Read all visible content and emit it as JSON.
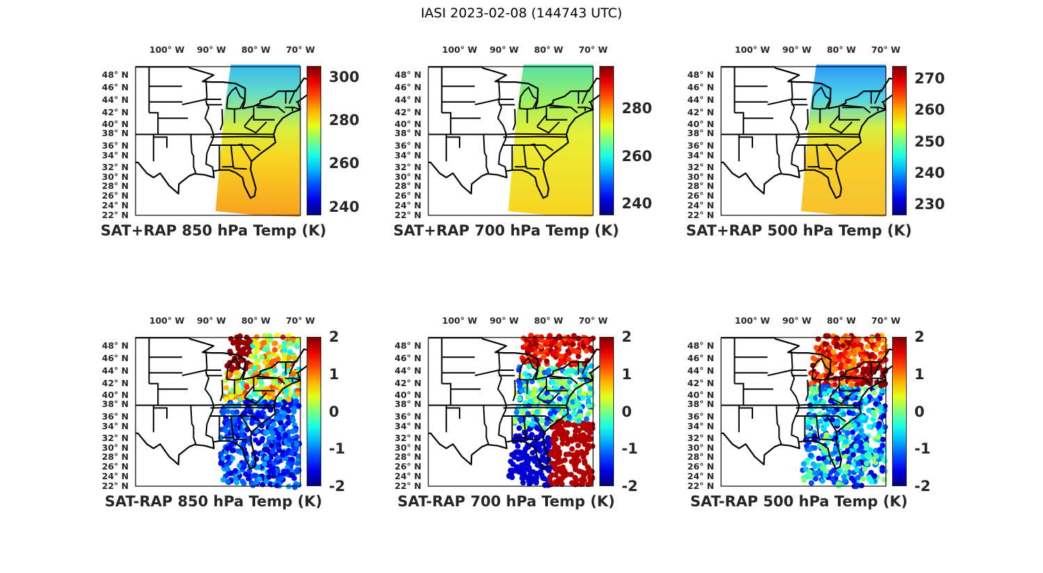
{
  "figure_title": "IASI 2023-02-08 (144743 UTC)",
  "colormap": "jet",
  "lon_labels": [
    "100° W",
    "90° W",
    "80° W",
    "70° W"
  ],
  "lat_labels": [
    "48° N",
    "46° N",
    "44° N",
    "42° N",
    "40° N",
    "38° N",
    "36° N",
    "34° N",
    "32° N",
    "30° N",
    "28° N",
    "26° N",
    "24° N",
    "22° N"
  ],
  "panels": [
    {
      "title": "SAT+RAP 850 hPa Temp (K)",
      "type": "field",
      "clim": [
        236,
        305
      ],
      "ticks": [
        "240",
        "260",
        "280",
        "300"
      ]
    },
    {
      "title": "SAT+RAP 700 hPa Temp (K)",
      "type": "field",
      "clim": [
        235,
        298
      ],
      "ticks": [
        "240",
        "260",
        "280"
      ]
    },
    {
      "title": "SAT+RAP 500 hPa Temp (K)",
      "type": "field",
      "clim": [
        226.5,
        274
      ],
      "ticks": [
        "230",
        "240",
        "250",
        "260",
        "270"
      ]
    },
    {
      "title": "SAT-RAP 850 hPa Temp (K)",
      "type": "difference",
      "clim": [
        -2,
        2
      ],
      "ticks": [
        "-2",
        "-1",
        "0",
        "1",
        "2"
      ]
    },
    {
      "title": "SAT-RAP 700 hPa Temp (K)",
      "type": "difference",
      "clim": [
        -2,
        2
      ],
      "ticks": [
        "-2",
        "-1",
        "0",
        "1",
        "2"
      ]
    },
    {
      "title": "SAT-RAP 500 hPa Temp (K)",
      "type": "difference",
      "clim": [
        -2,
        2
      ],
      "ticks": [
        "-2",
        "-1",
        "0",
        "1",
        "2"
      ]
    }
  ]
}
